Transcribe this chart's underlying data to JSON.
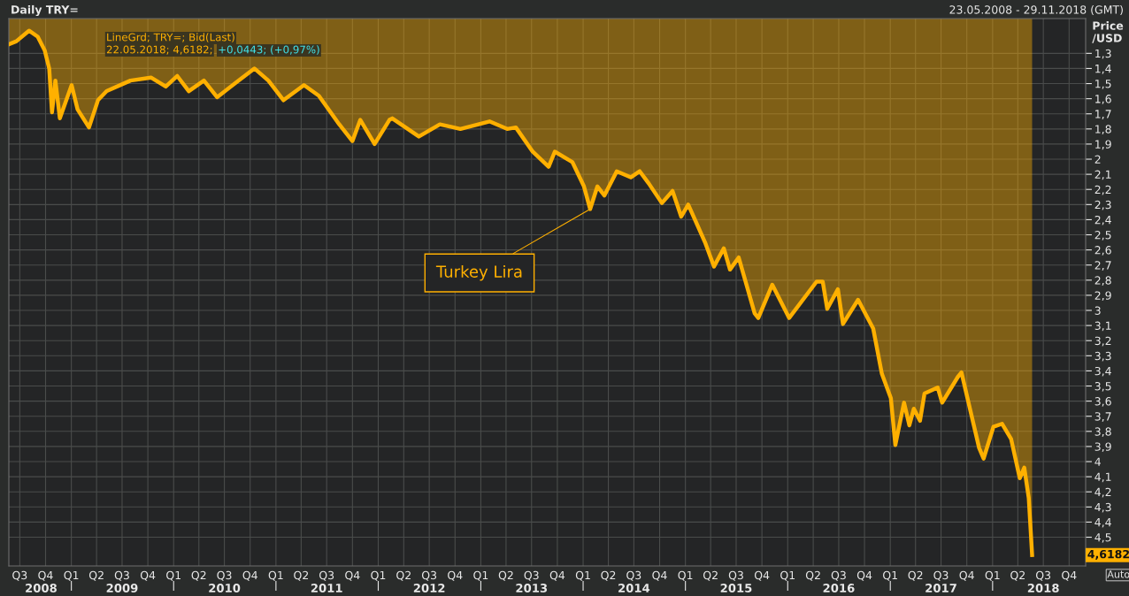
{
  "chart_data": {
    "type": "area",
    "title": "Daily TRY=",
    "subtitle": "23.05.2008 - 29.11.2018 (GMT)",
    "ylabel": "Price\n/USD",
    "x": [
      "2008-05-23",
      "2008-06-19",
      "2008-08-03",
      "2008-09-03",
      "2008-09-28",
      "2008-10-14",
      "2008-10-24",
      "2008-11-05",
      "2008-11-21",
      "2009-01-02",
      "2009-01-23",
      "2009-03-05",
      "2009-04-06",
      "2009-05-07",
      "2009-07-31",
      "2009-10-12",
      "2009-12-04",
      "2010-01-14",
      "2010-02-24",
      "2010-04-19",
      "2010-06-05",
      "2010-08-14",
      "2010-10-16",
      "2010-12-05",
      "2011-01-28",
      "2011-04-11",
      "2011-06-03",
      "2011-08-15",
      "2011-10-01",
      "2011-10-29",
      "2011-12-19",
      "2012-02-10",
      "2012-02-20",
      "2012-05-25",
      "2012-08-08",
      "2012-10-20",
      "2013-02-01",
      "2013-04-05",
      "2013-05-06",
      "2013-07-05",
      "2013-08-31",
      "2013-09-22",
      "2013-11-24",
      "2014-01-04",
      "2014-01-26",
      "2014-02-21",
      "2014-03-18",
      "2014-05-01",
      "2014-06-20",
      "2014-07-22",
      "2014-08-23",
      "2014-10-09",
      "2014-11-16",
      "2014-12-17",
      "2015-01-11",
      "2015-03-12",
      "2015-04-13",
      "2015-05-18",
      "2015-06-09",
      "2015-07-10",
      "2015-09-05",
      "2015-09-18",
      "2015-11-07",
      "2016-01-06",
      "2016-04-13",
      "2016-05-05",
      "2016-05-21",
      "2016-06-28",
      "2016-07-16",
      "2016-09-08",
      "2016-11-01",
      "2016-12-02",
      "2017-01-03",
      "2017-01-19",
      "2017-02-19",
      "2017-03-10",
      "2017-03-26",
      "2017-04-17",
      "2017-05-03",
      "2017-06-19",
      "2017-07-05",
      "2017-08-30",
      "2017-09-12",
      "2017-10-07",
      "2017-11-14",
      "2017-11-30",
      "2018-01-04",
      "2018-02-04",
      "2018-03-08",
      "2018-04-08",
      "2018-04-24",
      "2018-05-10",
      "2018-05-22"
    ],
    "series": [
      {
        "color": "#ffb000",
        "values": [
          1.24,
          1.22,
          1.15,
          1.19,
          1.28,
          1.4,
          1.69,
          1.48,
          1.73,
          1.51,
          1.67,
          1.79,
          1.61,
          1.55,
          1.48,
          1.46,
          1.52,
          1.45,
          1.55,
          1.48,
          1.59,
          1.49,
          1.4,
          1.48,
          1.61,
          1.51,
          1.58,
          1.77,
          1.88,
          1.74,
          1.9,
          1.74,
          1.73,
          1.85,
          1.77,
          1.8,
          1.75,
          1.8,
          1.79,
          1.95,
          2.05,
          1.95,
          2.02,
          2.18,
          2.33,
          2.18,
          2.24,
          2.08,
          2.12,
          2.08,
          2.16,
          2.29,
          2.21,
          2.38,
          2.3,
          2.55,
          2.71,
          2.59,
          2.73,
          2.65,
          3.02,
          3.05,
          2.83,
          3.05,
          2.81,
          2.81,
          2.99,
          2.86,
          3.09,
          2.93,
          3.12,
          3.42,
          3.58,
          3.89,
          3.61,
          3.76,
          3.65,
          3.73,
          3.55,
          3.51,
          3.61,
          3.44,
          3.41,
          3.61,
          3.91,
          3.98,
          3.77,
          3.75,
          3.85,
          4.11,
          4.04,
          4.24,
          4.6182
        ]
      }
    ],
    "xlim": [
      "2008-05-23",
      "2018-11-29"
    ],
    "xticks": [
      {
        "value": "2008-07-01",
        "label": "Q3"
      },
      {
        "value": "2008-10-01",
        "label": "Q4"
      },
      {
        "value": "2009-01-01",
        "label": "Q1"
      },
      {
        "value": "2009-04-01",
        "label": "Q2"
      },
      {
        "value": "2009-07-01",
        "label": "Q3"
      },
      {
        "value": "2009-10-01",
        "label": "Q4"
      },
      {
        "value": "2010-01-01",
        "label": "Q1"
      },
      {
        "value": "2010-04-01",
        "label": "Q2"
      },
      {
        "value": "2010-07-01",
        "label": "Q3"
      },
      {
        "value": "2010-10-01",
        "label": "Q4"
      },
      {
        "value": "2011-01-01",
        "label": "Q1"
      },
      {
        "value": "2011-04-01",
        "label": "Q2"
      },
      {
        "value": "2011-07-01",
        "label": "Q3"
      },
      {
        "value": "2011-10-01",
        "label": "Q4"
      },
      {
        "value": "2012-01-01",
        "label": "Q1"
      },
      {
        "value": "2012-04-01",
        "label": "Q2"
      },
      {
        "value": "2012-07-01",
        "label": "Q3"
      },
      {
        "value": "2012-10-01",
        "label": "Q4"
      },
      {
        "value": "2013-01-01",
        "label": "Q1"
      },
      {
        "value": "2013-04-01",
        "label": "Q2"
      },
      {
        "value": "2013-07-01",
        "label": "Q3"
      },
      {
        "value": "2013-10-01",
        "label": "Q4"
      },
      {
        "value": "2014-01-01",
        "label": "Q1"
      },
      {
        "value": "2014-04-01",
        "label": "Q2"
      },
      {
        "value": "2014-07-01",
        "label": "Q3"
      },
      {
        "value": "2014-10-01",
        "label": "Q4"
      },
      {
        "value": "2015-01-01",
        "label": "Q1"
      },
      {
        "value": "2015-04-01",
        "label": "Q2"
      },
      {
        "value": "2015-07-01",
        "label": "Q3"
      },
      {
        "value": "2015-10-01",
        "label": "Q4"
      },
      {
        "value": "2016-01-01",
        "label": "Q1"
      },
      {
        "value": "2016-04-01",
        "label": "Q2"
      },
      {
        "value": "2016-07-01",
        "label": "Q3"
      },
      {
        "value": "2016-10-01",
        "label": "Q4"
      },
      {
        "value": "2017-01-01",
        "label": "Q1"
      },
      {
        "value": "2017-04-01",
        "label": "Q2"
      },
      {
        "value": "2017-07-01",
        "label": "Q3"
      },
      {
        "value": "2017-10-01",
        "label": "Q4"
      },
      {
        "value": "2018-01-01",
        "label": "Q1"
      },
      {
        "value": "2018-04-01",
        "label": "Q2"
      },
      {
        "value": "2018-07-01",
        "label": "Q3"
      },
      {
        "value": "2018-10-01",
        "label": "Q4"
      }
    ],
    "x2lim": [
      "2008-05-23",
      "2018-11-29"
    ],
    "x2ticks": [
      {
        "value": "2008-09-15",
        "label": "2008"
      },
      {
        "value": "2009-01-01",
        "label": null
      },
      {
        "value": "2009-07-01",
        "label": "2009"
      },
      {
        "value": "2010-01-01",
        "label": null
      },
      {
        "value": "2010-07-01",
        "label": "2010"
      },
      {
        "value": "2011-01-01",
        "label": null
      },
      {
        "value": "2011-07-01",
        "label": "2011"
      },
      {
        "value": "2012-01-01",
        "label": null
      },
      {
        "value": "2012-07-01",
        "label": "2012"
      },
      {
        "value": "2013-01-01",
        "label": null
      },
      {
        "value": "2013-07-01",
        "label": "2013"
      },
      {
        "value": "2014-01-01",
        "label": null
      },
      {
        "value": "2014-07-01",
        "label": "2014"
      },
      {
        "value": "2015-01-01",
        "label": null
      },
      {
        "value": "2015-07-01",
        "label": "2015"
      },
      {
        "value": "2016-01-01",
        "label": null
      },
      {
        "value": "2016-07-01",
        "label": "2016"
      },
      {
        "value": "2017-01-01",
        "label": null
      },
      {
        "value": "2017-07-01",
        "label": "2017"
      },
      {
        "value": "2018-01-01",
        "label": null
      },
      {
        "value": "2018-07-01",
        "label": "2018"
      }
    ],
    "ylim": [
      4.69,
      1.07
    ],
    "yticks": [
      {
        "value": 1.3,
        "label": "1,3"
      },
      {
        "value": 1.4,
        "label": "1,4"
      },
      {
        "value": 1.5,
        "label": "1,5"
      },
      {
        "value": 1.6,
        "label": "1,6"
      },
      {
        "value": 1.7,
        "label": "1,7"
      },
      {
        "value": 1.8,
        "label": "1,8"
      },
      {
        "value": 1.9,
        "label": "1,9"
      },
      2,
      {
        "value": 2.1,
        "label": "2,1"
      },
      {
        "value": 2.2,
        "label": "2,2"
      },
      {
        "value": 2.3,
        "label": "2,3"
      },
      {
        "value": 2.4,
        "label": "2,4"
      },
      {
        "value": 2.5,
        "label": "2,5"
      },
      {
        "value": 2.6,
        "label": "2,6"
      },
      {
        "value": 2.7,
        "label": "2,7"
      },
      {
        "value": 2.8,
        "label": "2,8"
      },
      {
        "value": 2.9,
        "label": "2,9"
      },
      3,
      {
        "value": 3.1,
        "label": "3,1"
      },
      {
        "value": 3.2,
        "label": "3,2"
      },
      {
        "value": 3.3,
        "label": "3,3"
      },
      {
        "value": 3.4,
        "label": "3,4"
      },
      {
        "value": 3.5,
        "label": "3,5"
      },
      {
        "value": 3.6,
        "label": "3,6"
      },
      {
        "value": 3.7,
        "label": "3,7"
      },
      {
        "value": 3.8,
        "label": "3,8"
      },
      {
        "value": 3.9,
        "label": "3,9"
      },
      4,
      {
        "value": 4.1,
        "label": "4,1"
      },
      {
        "value": 4.2,
        "label": "4,2"
      },
      {
        "value": 4.3,
        "label": "4,3"
      },
      {
        "value": 4.4,
        "label": "4,4"
      },
      {
        "value": 4.5,
        "label": "4,5"
      }
    ],
    "grid": true,
    "annotations": [
      {
        "text": "Turkey Lira",
        "x": "2014-01-26",
        "y": 2.33
      },
      "LineGrd; TRY=; Bid(Last)",
      "22.05.2018; 4,6182;",
      "+0,0443; (+0,97%)",
      "4,6182",
      "Auto"
    ]
  }
}
